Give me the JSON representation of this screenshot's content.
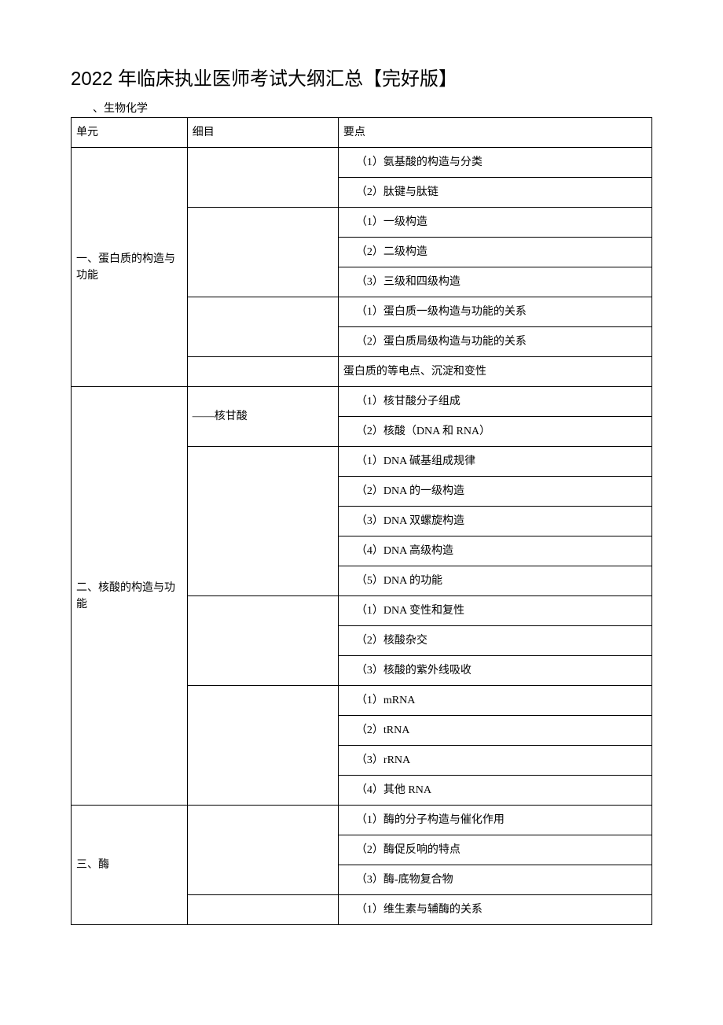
{
  "title": "2022 年临床执业医师考试大纲汇总【完好版】",
  "subhead": "、生物化学",
  "header": {
    "c1": "单元",
    "c2": "细目",
    "c3": "要点"
  },
  "sections": {
    "s1": {
      "unit": "一、蛋白质的构造与功能",
      "g1": [
        "（1）氨基酸的构造与分类",
        "（2）肽键与肽链"
      ],
      "g2": [
        "（1）一级构造",
        "（2）二级构造",
        "（3）三级和四级构造"
      ],
      "g3": [
        "（1）蛋白质一级构造与功能的关系",
        "（2）蛋白质局级构造与功能的关系"
      ],
      "g4": [
        "蛋白质的等电点、沉淀和变性"
      ]
    },
    "s2": {
      "unit": "二、核酸的构造与功能",
      "sub1": "——核甘酸",
      "g1": [
        "（1）核甘酸分子组成",
        "（2）核酸（DNA 和 RNA）"
      ],
      "g2": [
        "（1）DNA 碱基组成规律",
        "（2）DNA 的一级构造",
        "（3）DNA 双螺旋构造",
        "（4）DNA 高级构造",
        "（5）DNA 的功能"
      ],
      "g3": [
        "（1）DNA 变性和复性",
        "（2）核酸杂交",
        "（3）核酸的紫外线吸收"
      ],
      "g4": [
        "（1）mRNA",
        "（2）tRNA",
        "（3）rRNA",
        "（4）其他 RNA"
      ]
    },
    "s3": {
      "unit": "三、酶",
      "g1": [
        "（1）酶的分子构造与催化作用",
        "（2）酶促反响的特点",
        "（3）酶-底物复合物"
      ],
      "g2": [
        "（1）维生素与辅酶的关系"
      ]
    }
  }
}
